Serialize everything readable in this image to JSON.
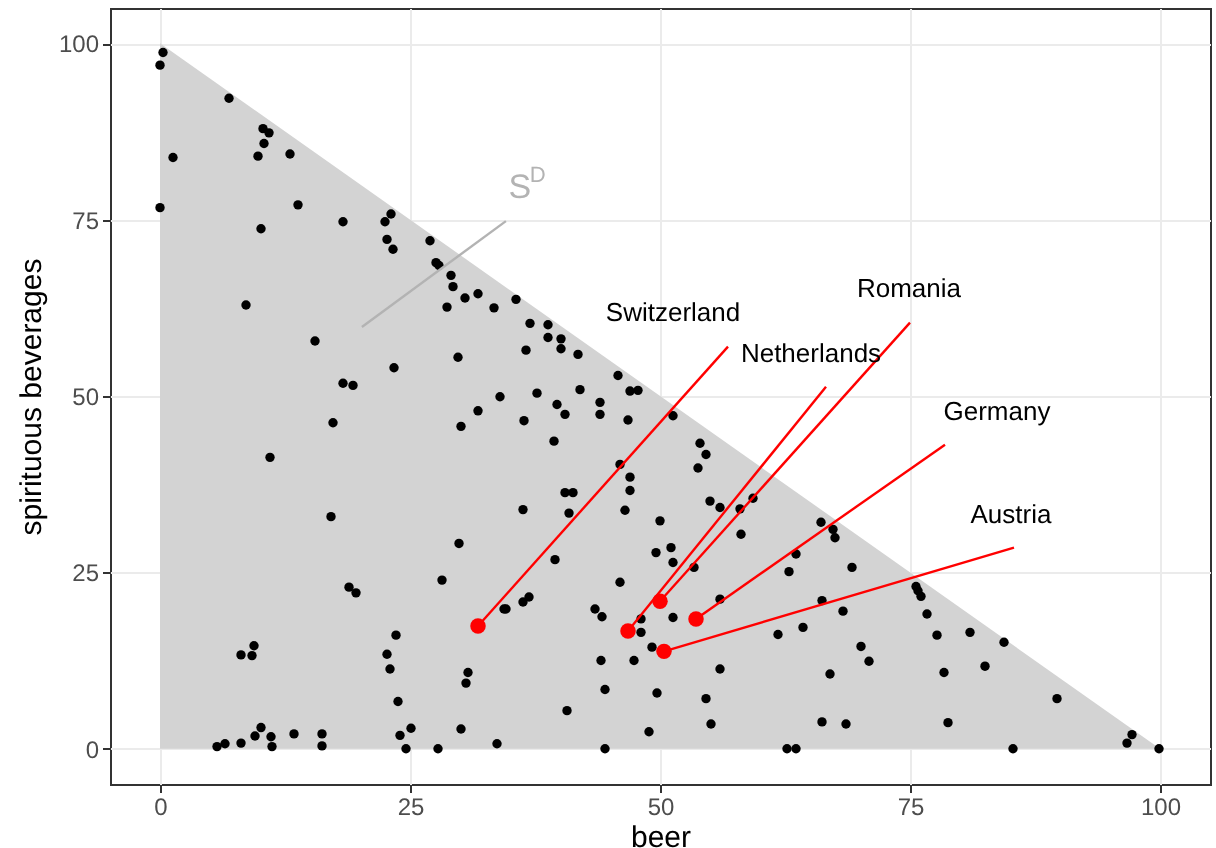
{
  "chart_data": {
    "type": "scatter",
    "xlabel": "beer",
    "ylabel": "spirituous beverages",
    "xlim": [
      -5,
      105
    ],
    "ylim": [
      -5,
      105
    ],
    "xticks": [
      0,
      25,
      50,
      75,
      100
    ],
    "yticks": [
      0,
      25,
      50,
      75,
      100
    ],
    "grid": true,
    "series": [
      {
        "color": "#000000",
        "x": [
          0.3,
          0,
          6.9,
          10.3,
          10.9,
          10.4,
          9.8,
          1.3,
          13.0,
          0,
          13.8,
          10.1,
          18.3,
          22.5,
          23.1,
          22.7,
          23.3,
          27.0,
          27.6,
          27.9,
          29.1,
          29.3,
          28.7,
          30.5,
          31.8,
          33.4,
          8.6,
          15.5,
          23.4,
          29.8,
          18.3,
          19.3,
          34.0,
          31.8,
          17.3,
          30.1,
          11.0,
          17.1,
          29.9,
          28.2,
          18.9,
          19.6,
          34.4,
          23.6,
          22.7,
          23.0,
          8.1,
          9.2,
          9.4,
          30.8,
          30.6,
          23.8,
          10.1,
          9.5,
          8.1,
          6.5,
          5.7,
          11.1,
          11.2,
          13.4,
          16.2,
          16.2,
          24.0,
          25.1,
          24.6,
          27.8,
          30.1,
          33.7,
          35.6,
          37.0,
          38.8,
          38.8,
          40.1,
          40.1,
          36.6,
          41.8,
          45.8,
          47.0,
          47.8,
          37.7,
          42.0,
          39.7,
          44.0,
          44.0,
          40.5,
          36.4,
          46.8,
          51.3,
          39.4,
          54.0,
          54.6,
          53.8,
          46.0,
          47.0,
          40.5,
          41.3,
          47.0,
          55.0,
          56.0,
          58.0,
          59.3,
          36.3,
          40.9,
          46.5,
          50.0,
          58.1,
          49.6,
          51.1,
          51.3,
          39.5,
          53.4,
          46.0,
          36.3,
          36.9,
          34.6,
          43.5,
          44.2,
          56.0,
          48.1,
          51.3,
          48.1,
          49.2,
          44.1,
          47.4,
          44.5,
          49.7,
          54.6,
          56.0,
          40.7,
          48.9,
          55.1,
          44.5,
          62.7,
          63.6,
          61.8,
          64.3,
          66.2,
          67.0,
          66.2,
          68.6,
          62.9,
          63.6,
          66.1,
          67.3,
          67.5,
          68.3,
          69.2,
          70.1,
          70.9,
          75.6,
          75.8,
          76.1,
          76.7,
          77.7,
          81.0,
          84.4,
          78.4,
          82.5,
          78.8,
          89.7,
          85.3,
          96.7,
          97.2,
          99.9
        ],
        "values": [
          98.7,
          96.9,
          92.2,
          87.9,
          87.3,
          85.8,
          84.0,
          83.8,
          84.3,
          76.7,
          77.1,
          73.7,
          74.7,
          74.7,
          75.8,
          72.2,
          70.8,
          72.0,
          68.9,
          68.5,
          67.1,
          65.5,
          62.6,
          63.9,
          64.5,
          62.5,
          62.9,
          57.8,
          54.0,
          55.5,
          51.8,
          51.5,
          49.9,
          47.9,
          46.2,
          45.7,
          41.3,
          32.9,
          29.1,
          23.9,
          22.9,
          22.1,
          19.8,
          16.1,
          13.4,
          11.3,
          13.3,
          13.2,
          14.6,
          10.8,
          9.3,
          6.7,
          3.0,
          1.8,
          0.8,
          0.7,
          0.3,
          1.7,
          0.3,
          2.1,
          2.1,
          0.4,
          1.9,
          2.9,
          0,
          0,
          2.8,
          0.7,
          63.7,
          60.3,
          60.1,
          58.3,
          58.1,
          56.7,
          56.5,
          55.9,
          52.9,
          50.7,
          50.8,
          50.4,
          50.9,
          48.8,
          49.1,
          47.4,
          47.4,
          46.5,
          46.6,
          47.2,
          43.6,
          43.3,
          41.7,
          39.8,
          40.3,
          38.5,
          36.3,
          36.3,
          36.6,
          35.1,
          34.2,
          34.0,
          35.5,
          33.9,
          33.4,
          33.8,
          32.3,
          30.4,
          27.8,
          28.5,
          26.4,
          26.8,
          25.7,
          23.6,
          20.8,
          21.5,
          19.8,
          19.8,
          18.7,
          21.2,
          18.4,
          18.6,
          16.5,
          14.4,
          12.5,
          12.5,
          8.4,
          7.9,
          7.1,
          11.3,
          5.4,
          2.4,
          3.5,
          0,
          0,
          0,
          16.2,
          17.2,
          21.0,
          10.6,
          3.8,
          3.5,
          25.1,
          27.6,
          32.1,
          31.1,
          29.9,
          19.5,
          25.7,
          14.5,
          12.4,
          23.0,
          22.4,
          21.6,
          19.1,
          16.1,
          16.5,
          15.1,
          10.8,
          11.7,
          3.7,
          7.1,
          0,
          0.8,
          2.0,
          0
        ]
      },
      {
        "color": "#ff0000",
        "x": [
          31.8,
          46.8,
          50.0,
          53.6,
          50.4
        ],
        "values": [
          17.4,
          16.7,
          20.9,
          18.4,
          13.8
        ]
      },
      {
        "type": "area",
        "color": "#d3d3d3",
        "x": [
          0,
          100
        ],
        "values": [
          100,
          0
        ]
      }
    ],
    "annotations": [
      "S$^{D}$",
      {
        "text": "Switzerland",
        "x": 31.8,
        "y": 17.4
      },
      {
        "text": "Netherlands",
        "x": 46.8,
        "y": 16.7
      },
      {
        "text": "Romania",
        "x": 50.0,
        "y": 20.9
      },
      {
        "text": "Germany",
        "x": 53.6,
        "y": 18.4
      },
      {
        "text": "Austria",
        "x": 50.4,
        "y": 13.8
      }
    ]
  }
}
